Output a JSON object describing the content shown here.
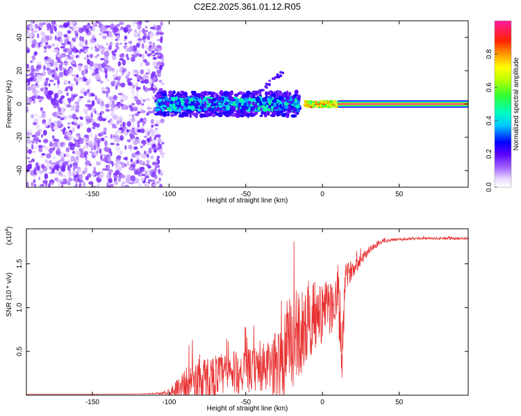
{
  "figure_title": "C2E2.2025.361.01.12.R05",
  "chart_data": [
    {
      "type": "heatmap",
      "title": "C2E2.2025.361.01.12.R05",
      "xlabel": "Height of straight line (km)",
      "ylabel": "Frequency (Hz)",
      "xlim": [
        -193,
        95
      ],
      "ylim": [
        -50,
        50
      ],
      "xticks": [
        -150,
        -100,
        -50,
        0,
        50
      ],
      "yticks": [
        -40,
        -20,
        0,
        20,
        40
      ],
      "xtick_labels": [
        "-150",
        "-100",
        "-50",
        "0",
        "50"
      ],
      "ytick_labels": [
        "-40",
        "-20",
        "0",
        "20",
        "40"
      ],
      "colorbar": {
        "label": "Normalized spectral amplitude",
        "range": [
          0,
          1
        ],
        "ticks": [
          0.0,
          0.2,
          0.4,
          0.6,
          0.8
        ],
        "tick_labels": [
          "0.0",
          "0.2",
          "0.4",
          "0.6",
          "0.8"
        ]
      },
      "regions": [
        {
          "x_range": [
            -193,
            -108
          ],
          "freq_range": [
            -50,
            50
          ],
          "amplitude": 0.12,
          "description": "noise scatter"
        },
        {
          "x_range": [
            -108,
            -15
          ],
          "freq_center": 0,
          "freq_spread": 4,
          "amplitude": 0.35,
          "description": "signal band forming"
        },
        {
          "x_range": [
            -12,
            15
          ],
          "freq_center": 0,
          "freq_spread": 2,
          "amplitude": 0.8
        },
        {
          "x_range": [
            15,
            95
          ],
          "freq_center": 0,
          "freq_spread": 1,
          "amplitude": 1.0
        }
      ]
    },
    {
      "type": "line",
      "xlabel": "Height of straight line (km)",
      "ylabel": "SNR (10 * v/v)",
      "y_scale_label": "(x10",
      "y_scale_exponent": "4",
      "xlim": [
        -193,
        95
      ],
      "ylim": [
        0,
        1.9
      ],
      "xticks": [
        -150,
        -100,
        -50,
        0,
        50
      ],
      "yticks": [
        0.5,
        1.0,
        1.5
      ],
      "xtick_labels": [
        "-150",
        "-100",
        "-50",
        "0",
        "50"
      ],
      "ytick_labels": [
        "0.5",
        "1.0",
        "1.5"
      ],
      "series": [
        {
          "name": "SNR",
          "color": "#e83030",
          "x": [
            -193,
            -150,
            -120,
            -105,
            -100,
            -95,
            -90,
            -85,
            -80,
            -75,
            -70,
            -65,
            -60,
            -55,
            -50,
            -45,
            -40,
            -35,
            -30,
            -25,
            -20,
            -15,
            -10,
            -5,
            0,
            5,
            10,
            13,
            15,
            20,
            25,
            30,
            35,
            40,
            50,
            60,
            70,
            80,
            95
          ],
          "y": [
            0.01,
            0.01,
            0.015,
            0.02,
            0.04,
            0.08,
            0.12,
            0.15,
            0.18,
            0.2,
            0.22,
            0.24,
            0.25,
            0.26,
            0.27,
            0.29,
            0.3,
            0.32,
            0.35,
            0.45,
            0.6,
            0.7,
            0.8,
            0.9,
            0.95,
            1.0,
            1.1,
            0.5,
            1.35,
            1.45,
            1.55,
            1.65,
            1.72,
            1.76,
            1.78,
            1.79,
            1.79,
            1.79,
            1.79
          ],
          "noise": [
            0,
            0,
            0,
            0.01,
            0.04,
            0.1,
            0.18,
            0.22,
            0.25,
            0.25,
            0.25,
            0.25,
            0.25,
            0.25,
            0.25,
            0.25,
            0.28,
            0.3,
            0.4,
            0.55,
            0.55,
            0.5,
            0.45,
            0.4,
            0.35,
            0.3,
            0.4,
            0.4,
            0.15,
            0.1,
            0.07,
            0.05,
            0.04,
            0.02,
            0.015,
            0.015,
            0.015,
            0.015,
            0.015
          ]
        }
      ]
    }
  ]
}
